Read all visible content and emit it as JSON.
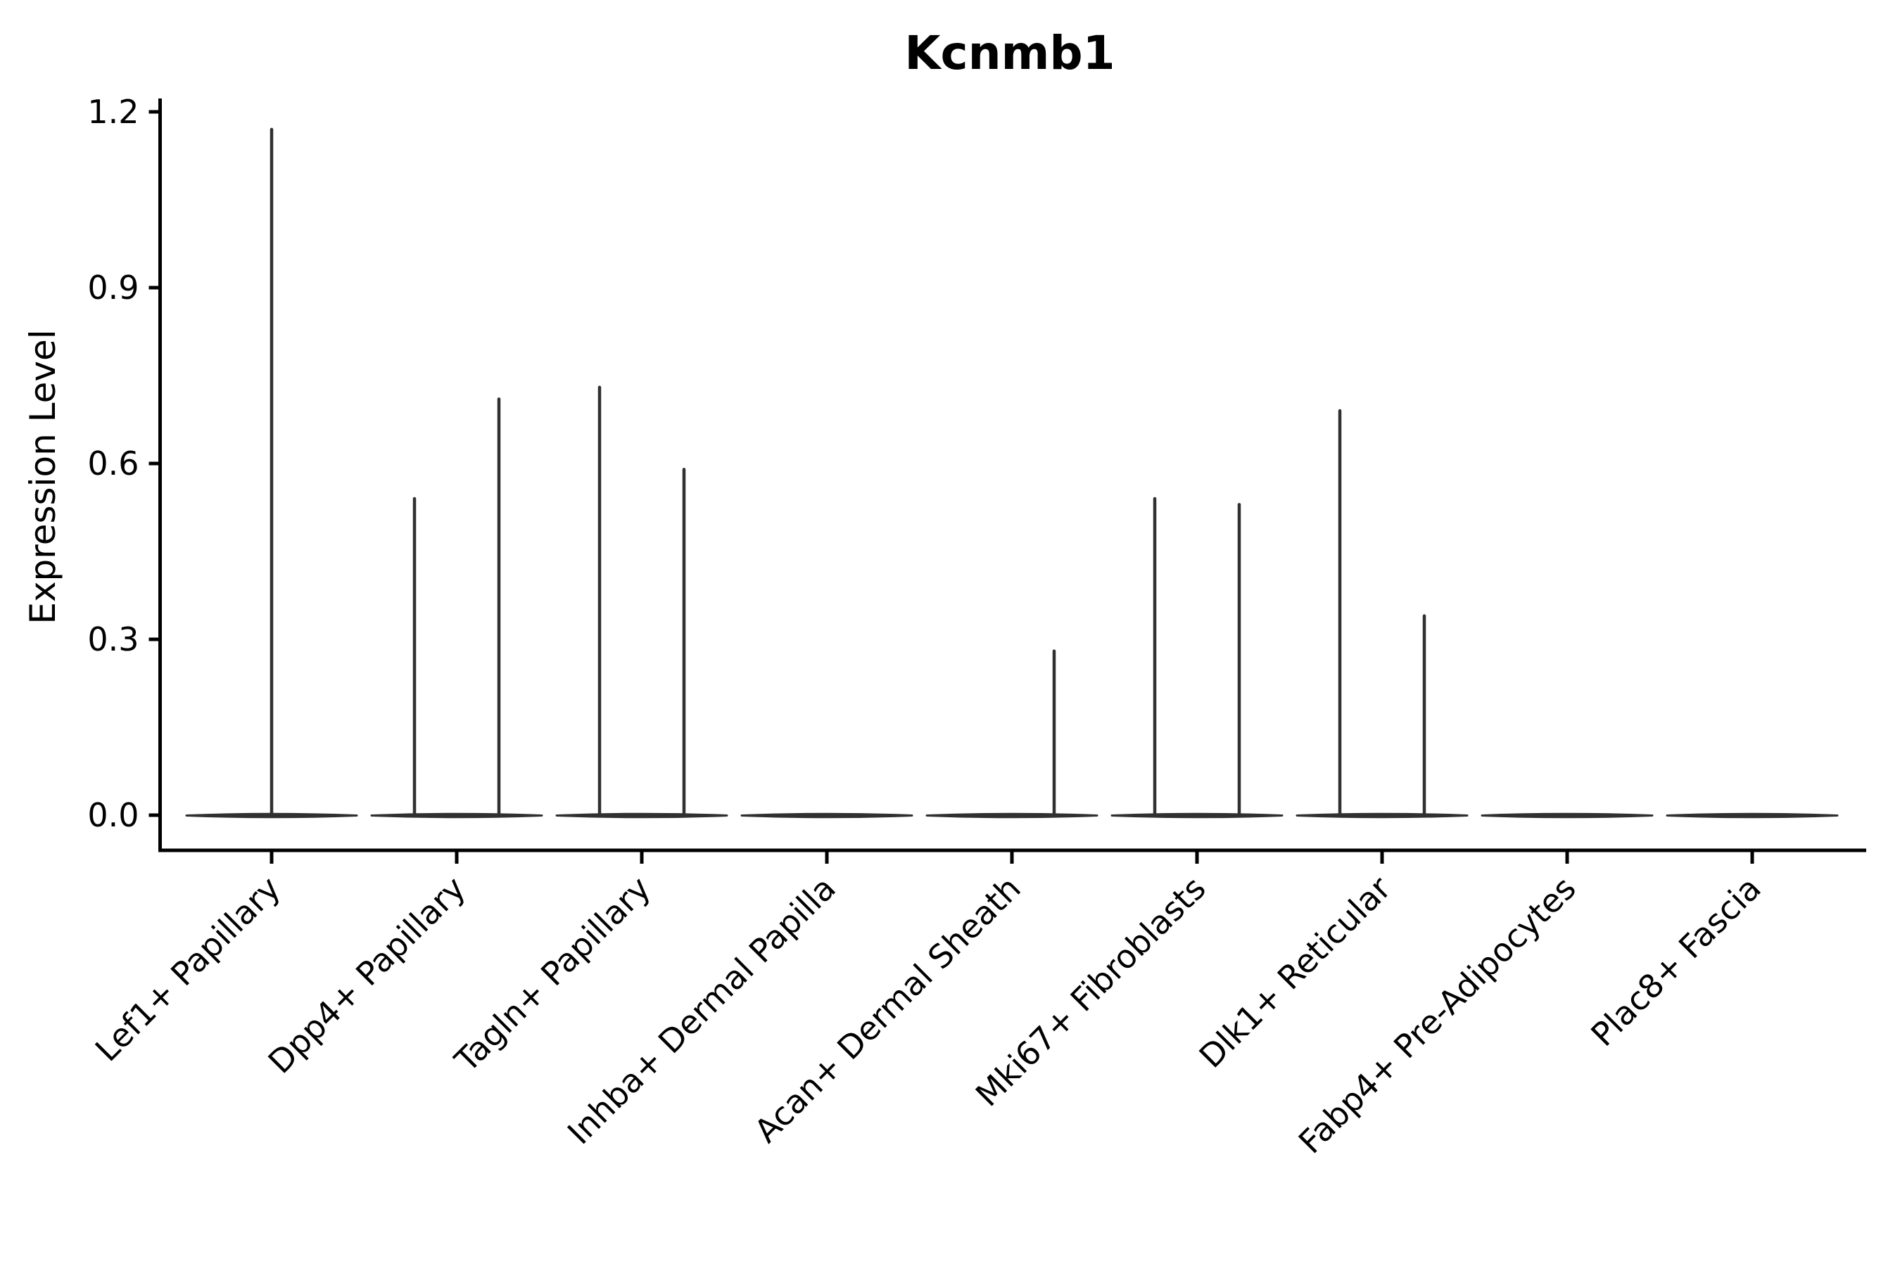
{
  "figure": {
    "background": "#ffffff",
    "axis_color": "#000000",
    "text_color": "#000000",
    "violin_color": "#303030"
  },
  "chart_data": {
    "type": "violin",
    "title": "Kcnmb1",
    "xlabel": "",
    "ylabel": "Expression Level",
    "yticks": [
      0.0,
      0.3,
      0.6,
      0.9,
      1.2
    ],
    "ytick_labels": [
      "0.0",
      "0.3",
      "0.6",
      "0.9",
      "1.2"
    ],
    "ylim": [
      -0.06,
      1.22
    ],
    "grid": false,
    "legend": "none",
    "x_tick_rotation": 45,
    "categories": [
      "Lef1+ Papillary",
      "Dpp4+ Papillary",
      "Tagln+ Papillary",
      "Inhba+ Dermal Papilla",
      "Acan+ Dermal Sheath",
      "Mki67+ Fibroblasts",
      "Dlk1+ Reticular",
      "Fabp4+ Pre-Adipocytes",
      "Plac8+ Fascia"
    ],
    "violins": [
      {
        "category": "Lef1+ Papillary",
        "base_at_zero": true,
        "spikes": [
          {
            "side": "center",
            "value": 1.17
          }
        ]
      },
      {
        "category": "Dpp4+ Papillary",
        "base_at_zero": true,
        "spikes": [
          {
            "side": "left",
            "value": 0.54
          },
          {
            "side": "right",
            "value": 0.71
          }
        ]
      },
      {
        "category": "Tagln+ Papillary",
        "base_at_zero": true,
        "spikes": [
          {
            "side": "left",
            "value": 0.73
          },
          {
            "side": "right",
            "value": 0.59
          }
        ]
      },
      {
        "category": "Inhba+ Dermal Papilla",
        "base_at_zero": true,
        "spikes": []
      },
      {
        "category": "Acan+ Dermal Sheath",
        "base_at_zero": true,
        "spikes": [
          {
            "side": "right",
            "value": 0.28
          }
        ]
      },
      {
        "category": "Mki67+ Fibroblasts",
        "base_at_zero": true,
        "spikes": [
          {
            "side": "left",
            "value": 0.54
          },
          {
            "side": "right",
            "value": 0.53
          }
        ]
      },
      {
        "category": "Dlk1+ Reticular",
        "base_at_zero": true,
        "spikes": [
          {
            "side": "left",
            "value": 0.69
          },
          {
            "side": "right",
            "value": 0.34
          }
        ]
      },
      {
        "category": "Fabp4+ Pre-Adipocytes",
        "base_at_zero": true,
        "spikes": []
      },
      {
        "category": "Plac8+ Fascia",
        "base_at_zero": true,
        "spikes": []
      }
    ]
  }
}
